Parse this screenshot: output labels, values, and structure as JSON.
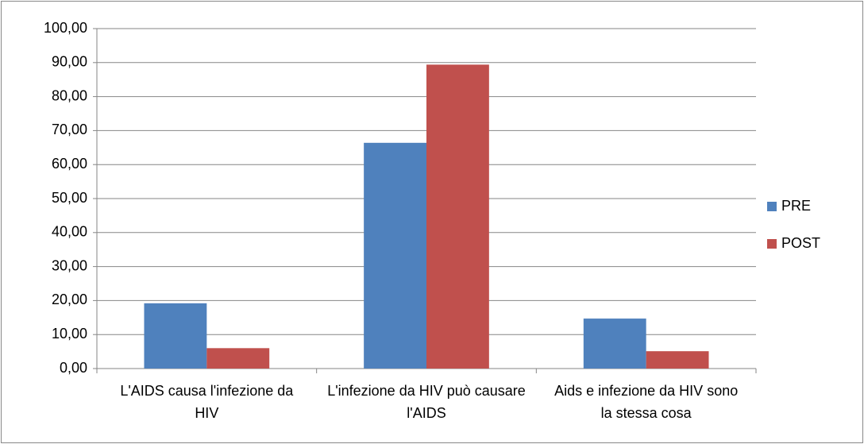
{
  "chart_data": {
    "type": "bar",
    "categories": [
      "L'AIDS causa l'infezione da HIV",
      "L'infezione da HIV può causare l'AIDS",
      "Aids e infezione da HIV sono la stessa cosa"
    ],
    "series": [
      {
        "name": "PRE",
        "color": "#4f81bd",
        "values": [
          19.2,
          66.4,
          14.7
        ]
      },
      {
        "name": "POST",
        "color": "#c0504d",
        "values": [
          6.0,
          89.4,
          5.1
        ]
      }
    ],
    "ylim": [
      0,
      100
    ],
    "yticks": [
      {
        "value": 0,
        "label": "0,00"
      },
      {
        "value": 10,
        "label": "10,00"
      },
      {
        "value": 20,
        "label": "20,00"
      },
      {
        "value": 30,
        "label": "30,00"
      },
      {
        "value": 40,
        "label": "40,00"
      },
      {
        "value": 50,
        "label": "50,00"
      },
      {
        "value": 60,
        "label": "60,00"
      },
      {
        "value": 70,
        "label": "70,00"
      },
      {
        "value": 80,
        "label": "80,00"
      },
      {
        "value": 90,
        "label": "90,00"
      },
      {
        "value": 100,
        "label": "100,00"
      }
    ],
    "grid": true,
    "legend": "right"
  }
}
